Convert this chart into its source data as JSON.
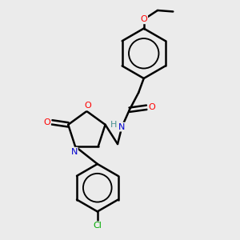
{
  "background_color": "#ebebeb",
  "bond_color": "#000000",
  "bond_width": 1.8,
  "atom_colors": {
    "O": "#ff0000",
    "N": "#0000cd",
    "Cl": "#00aa00",
    "C": "#000000",
    "H": "#4a9090"
  },
  "figsize": [
    3.0,
    3.0
  ],
  "dpi": 100
}
